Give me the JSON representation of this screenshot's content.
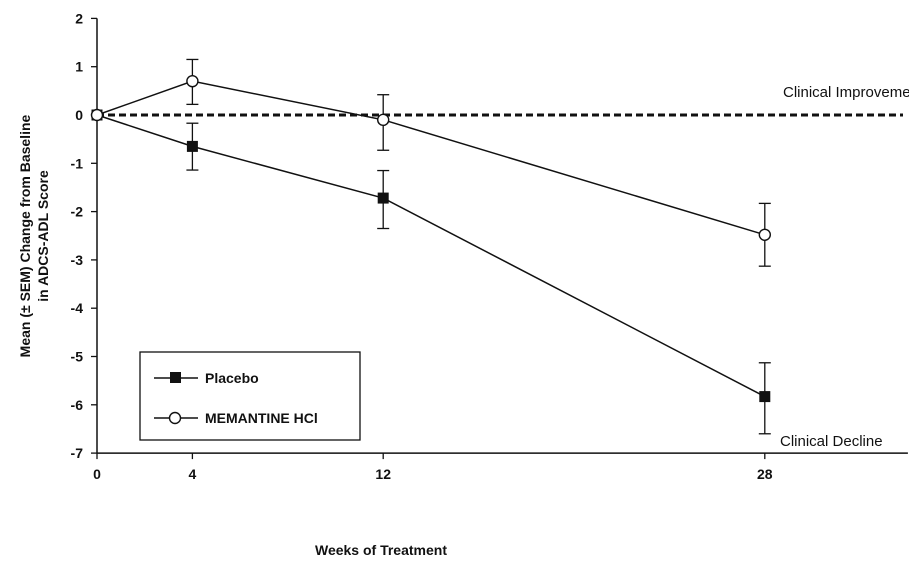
{
  "chart_data": {
    "type": "line",
    "title": "",
    "xlabel": "Weeks of Treatment",
    "ylabel_lines": [
      "Mean (± SEM) Change from Baseline",
      "in ADCS-ADL Score"
    ],
    "x": [
      0,
      4,
      12,
      28
    ],
    "x_ticks": [
      "0",
      "4",
      "12",
      "28"
    ],
    "y_ticks": [
      "2",
      "1",
      "0",
      "-1",
      "-2",
      "-3",
      "-4",
      "-5",
      "-6",
      "-7"
    ],
    "ylim": [
      -7,
      2
    ],
    "xlim": [
      0,
      34
    ],
    "series": [
      {
        "name": "Placebo",
        "marker": "filled-square",
        "values": [
          0,
          -0.65,
          -1.72,
          -5.83
        ],
        "err_high": [
          0,
          -0.17,
          -1.15,
          -5.13
        ],
        "err_low": [
          0,
          -1.14,
          -2.35,
          -6.6
        ]
      },
      {
        "name": "MEMANTINE HCl",
        "marker": "open-circle",
        "values": [
          0,
          0.7,
          -0.1,
          -2.48
        ],
        "err_high": [
          0,
          1.15,
          0.42,
          -1.83
        ],
        "err_low": [
          0,
          0.22,
          -0.73,
          -3.13
        ]
      }
    ],
    "reference_line": {
      "y": 0,
      "style": "dashed"
    },
    "annotations": [
      "Clinical Improvement",
      "Clinical Decline"
    ],
    "legend_position": "bottom-left",
    "grid": false
  }
}
